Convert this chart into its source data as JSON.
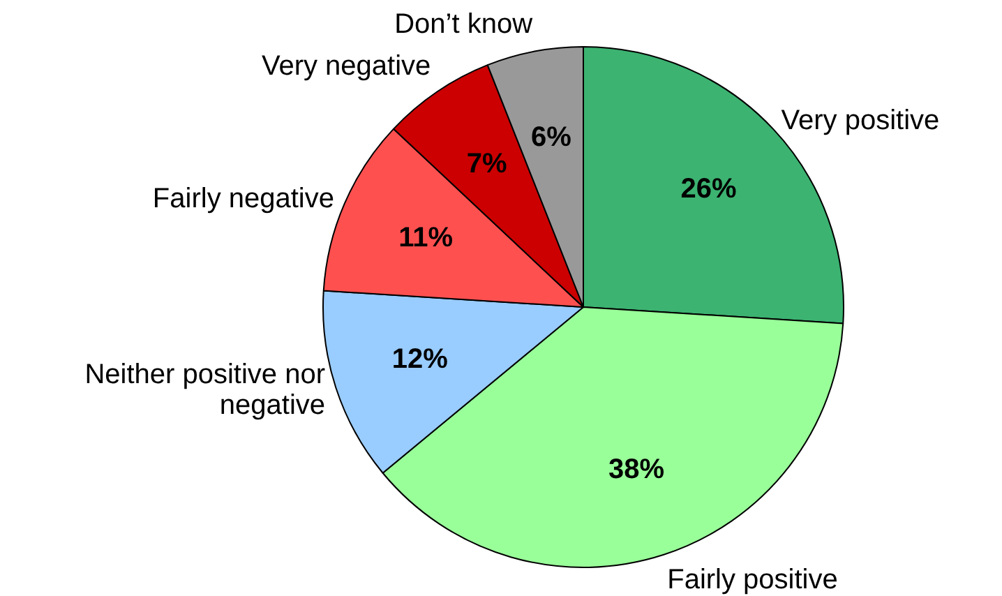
{
  "chart_data": {
    "type": "pie",
    "categories": [
      "Very positive",
      "Fairly positive",
      "Neither positive nor negative",
      "Fairly negative",
      "Very negative",
      "Don’t know"
    ],
    "values": [
      26,
      38,
      12,
      11,
      7,
      6
    ],
    "colors": [
      "#3cb371",
      "#99ff99",
      "#99ccff",
      "#ff5050",
      "#cc0000",
      "#999999"
    ],
    "value_labels": [
      "26%",
      "38%",
      "12%",
      "11%",
      "7%",
      "6%"
    ],
    "legend": false
  }
}
